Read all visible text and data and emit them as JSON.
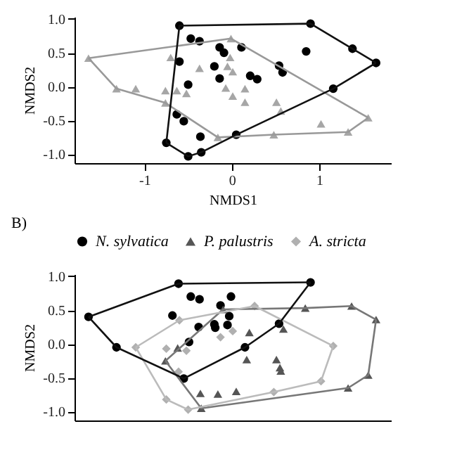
{
  "chart_data": [
    {
      "type": "scatter",
      "xlabel": "NMDS1",
      "ylabel": "NMDS2",
      "xlim": [
        -1.8,
        1.82
      ],
      "ylim": [
        -1.13,
        1.03
      ],
      "xticks": [
        -1,
        0,
        1
      ],
      "yticks": [
        {
          "value": -1,
          "label": "-1.0"
        },
        {
          "value": -0.5,
          "label": "-0.5"
        },
        {
          "value": 0,
          "label": "0.0"
        },
        {
          "value": 0.5,
          "label": "0.5"
        },
        {
          "value": 1,
          "label": "1.0"
        }
      ],
      "series": [
        {
          "type": "line",
          "color": "#999999",
          "x": [
            -1.64,
            -0.01,
            1.56
          ],
          "values": [
            0.42,
            0.71,
            -0.46
          ]
        },
        {
          "type": "line",
          "color": "#999999",
          "x": [
            -1.64,
            -1.32,
            -0.76,
            -0.16,
            0.48,
            1.33,
            1.56
          ],
          "values": [
            0.42,
            -0.03,
            -0.24,
            -0.75,
            -0.71,
            -0.67,
            -0.46
          ]
        },
        {
          "type": "line",
          "color": "#111111",
          "x": [
            -0.75,
            -0.6,
            0.9,
            1.38,
            1.65
          ],
          "values": [
            -0.83,
            0.9,
            0.93,
            0.56,
            0.35
          ]
        },
        {
          "type": "line",
          "color": "#111111",
          "x": [
            -0.75,
            -0.5,
            -0.35,
            0.05,
            1.16,
            1.65
          ],
          "values": [
            -0.83,
            -1.03,
            -0.97,
            -0.71,
            -0.03,
            0.35
          ]
        },
        {
          "color": "#a6a6a6",
          "marker": "triangle",
          "x": [
            -1.64,
            -1.32,
            -1.1,
            -0.76,
            -0.63,
            -0.52,
            -0.76,
            -0.7,
            -0.37,
            -0.01,
            -0.02,
            -0.05,
            0.01,
            -0.07,
            0.01,
            0.15,
            0.15,
            0.51,
            0.56,
            1.02,
            1.56,
            1.33,
            0.48,
            -0.16
          ],
          "values": [
            0.42,
            -0.03,
            -0.03,
            -0.06,
            -0.06,
            -0.1,
            -0.24,
            0.43,
            0.27,
            0.71,
            0.43,
            0.3,
            0.22,
            -0.02,
            -0.14,
            -0.03,
            -0.23,
            -0.23,
            -0.36,
            -0.55,
            -0.46,
            -0.67,
            -0.71,
            -0.75
          ]
        },
        {
          "color": "#000000",
          "marker": "circle",
          "x": [
            -0.6,
            0.9,
            1.38,
            1.65,
            1.16,
            0.05,
            -0.35,
            -0.5,
            -0.75,
            -0.47,
            -0.37,
            -0.6,
            -0.14,
            -0.09,
            0.11,
            -0.2,
            -0.14,
            0.21,
            0.29,
            0.54,
            0.58,
            0.85,
            -0.5,
            -0.63,
            -0.55,
            -0.36
          ],
          "values": [
            0.9,
            0.93,
            0.56,
            0.35,
            -0.03,
            -0.71,
            -0.97,
            -1.03,
            -0.83,
            0.71,
            0.67,
            0.37,
            0.58,
            0.5,
            0.58,
            0.3,
            0.12,
            0.16,
            0.11,
            0.31,
            0.21,
            0.52,
            0.03,
            -0.41,
            -0.51,
            -0.74
          ]
        }
      ]
    },
    {
      "type": "scatter",
      "ylabel": "NMDS2",
      "annotations": [
        "B)"
      ],
      "legend": "top",
      "tick_labels": "y",
      "xlim": [
        -1.8,
        1.82
      ],
      "ylim": [
        -1.13,
        1.03
      ],
      "yticks": [
        {
          "value": -1,
          "label": "-1.0"
        },
        {
          "value": -0.5,
          "label": "-0.5"
        },
        {
          "value": 0,
          "label": "0.0"
        },
        {
          "value": 0.5,
          "label": "0.5"
        },
        {
          "value": 1,
          "label": "1.0"
        }
      ],
      "series": [
        {
          "type": "line",
          "color": "#777777",
          "x": [
            -0.76,
            -0.1,
            0.84,
            1.37,
            1.65
          ],
          "values": [
            -0.25,
            0.51,
            0.53,
            0.56,
            0.36
          ]
        },
        {
          "type": "line",
          "color": "#777777",
          "x": [
            -0.76,
            -0.35,
            1.33,
            1.56,
            1.65
          ],
          "values": [
            -0.25,
            -0.95,
            -0.65,
            -0.46,
            0.36
          ]
        },
        {
          "type": "line",
          "color": "#bbbbbb",
          "x": [
            -1.1,
            -0.6,
            0.26,
            1.16
          ],
          "values": [
            -0.05,
            0.35,
            0.56,
            -0.03
          ]
        },
        {
          "type": "line",
          "color": "#bbbbbb",
          "x": [
            -1.1,
            -0.75,
            -0.5,
            0.48,
            1.02,
            1.16
          ],
          "values": [
            -0.05,
            -0.82,
            -0.97,
            -0.71,
            -0.55,
            -0.03
          ]
        },
        {
          "type": "line",
          "color": "#111111",
          "x": [
            -1.64,
            -0.61,
            0.9
          ],
          "values": [
            0.4,
            0.89,
            0.91
          ]
        },
        {
          "type": "line",
          "color": "#111111",
          "x": [
            -1.64,
            -1.32,
            -0.55,
            0.15,
            0.54,
            0.9
          ],
          "values": [
            0.4,
            -0.05,
            -0.51,
            -0.05,
            0.3,
            0.91
          ]
        },
        {
          "name": "N. sylvatica",
          "color": "#000000",
          "marker": "circle",
          "x": [
            -1.64,
            -1.32,
            -0.61,
            0.9,
            0.54,
            0.15,
            -0.55,
            -0.47,
            -0.37,
            -0.68,
            -0.13,
            -0.01,
            -0.03,
            -0.05,
            -0.2,
            -0.19,
            -0.38,
            -0.49
          ],
          "values": [
            0.4,
            -0.05,
            0.89,
            0.91,
            0.3,
            -0.05,
            -0.51,
            0.7,
            0.66,
            0.42,
            0.57,
            0.7,
            0.41,
            0.28,
            0.29,
            0.24,
            0.25,
            0.03
          ]
        },
        {
          "name": "P. palustris",
          "color": "#555555",
          "marker": "triangle",
          "x": [
            0.84,
            1.37,
            1.65,
            1.56,
            1.33,
            -0.35,
            -0.76,
            -0.62,
            -0.1,
            0.2,
            0.59,
            0.17,
            0.51,
            0.55,
            0.56,
            -0.36,
            -0.16,
            0.05
          ],
          "values": [
            0.53,
            0.56,
            0.36,
            -0.46,
            -0.65,
            -0.95,
            -0.25,
            -0.06,
            0.51,
            0.17,
            0.22,
            -0.23,
            -0.23,
            -0.35,
            -0.4,
            -0.73,
            -0.74,
            -0.7
          ]
        },
        {
          "name": "A. stricta",
          "color": "#b0b0b0",
          "marker": "diamond",
          "x": [
            -1.1,
            -0.6,
            0.26,
            1.16,
            1.02,
            0.48,
            -0.75,
            -0.5,
            -0.75,
            -0.52,
            -0.13,
            0.01,
            -0.61
          ],
          "values": [
            -0.05,
            0.35,
            0.56,
            -0.03,
            -0.55,
            -0.71,
            -0.82,
            -0.97,
            -0.07,
            -0.1,
            0.1,
            0.19,
            -0.41
          ]
        }
      ]
    }
  ]
}
